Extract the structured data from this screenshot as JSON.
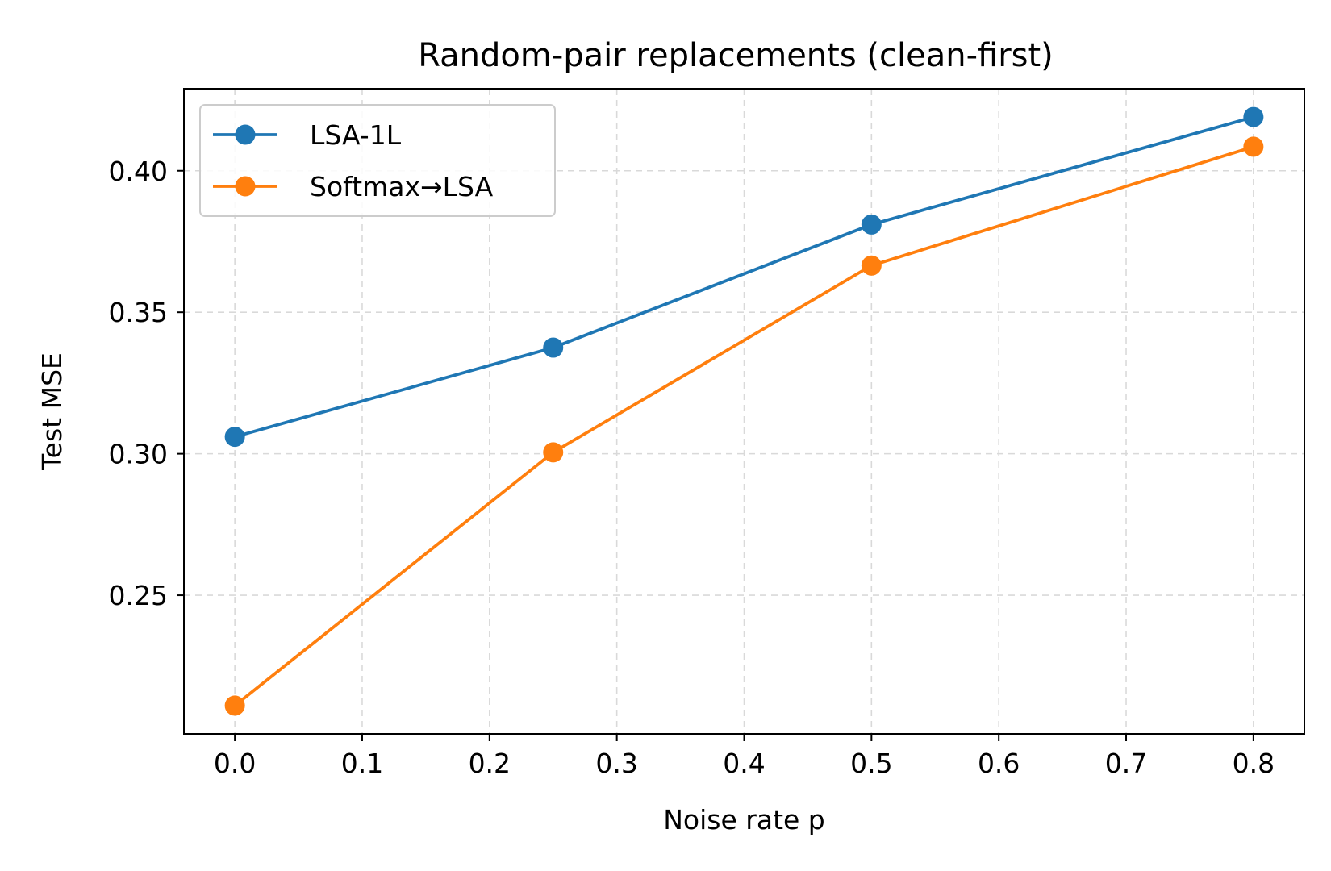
{
  "chart_data": {
    "type": "line",
    "title": "Random-pair replacements (clean-first)",
    "xlabel": "Noise rate p",
    "ylabel": "Test MSE",
    "xlim": [
      -0.04,
      0.84
    ],
    "ylim": [
      0.201,
      0.429
    ],
    "xticks": [
      0.0,
      0.1,
      0.2,
      0.3,
      0.4,
      0.5,
      0.6,
      0.7,
      0.8
    ],
    "xtick_labels": [
      "0.0",
      "0.1",
      "0.2",
      "0.3",
      "0.4",
      "0.5",
      "0.6",
      "0.7",
      "0.8"
    ],
    "yticks": [
      0.25,
      0.3,
      0.35,
      0.4
    ],
    "ytick_labels": [
      "0.25",
      "0.30",
      "0.35",
      "0.40"
    ],
    "grid": true,
    "legend_position": "top-left",
    "x": [
      0.0,
      0.25,
      0.5,
      0.8
    ],
    "series": [
      {
        "name": "LSA-1L",
        "color": "#1f77b4",
        "values": [
          0.306,
          0.3375,
          0.381,
          0.419
        ]
      },
      {
        "name": "Softmax→LSA",
        "color": "#ff7f0e",
        "values": [
          0.211,
          0.3005,
          0.3665,
          0.4085
        ]
      }
    ]
  }
}
